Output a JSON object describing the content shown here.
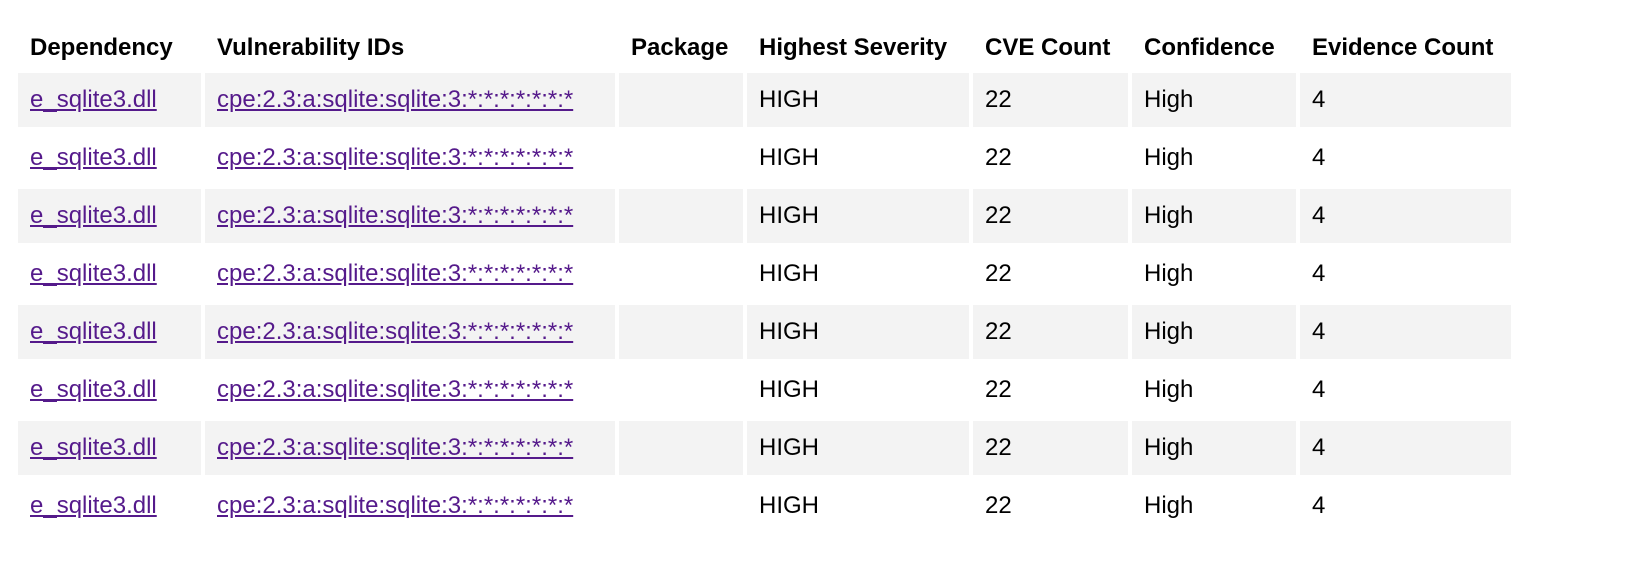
{
  "table": {
    "headers": {
      "dependency": "Dependency",
      "vulnerability_ids": "Vulnerability IDs",
      "package": "Package",
      "highest_severity": "Highest Severity",
      "cve_count": "CVE Count",
      "confidence": "Confidence",
      "evidence_count": "Evidence Count"
    },
    "rows": [
      {
        "dependency": "e_sqlite3.dll",
        "vulnerability_ids": "cpe:2.3:a:sqlite:sqlite:3:*:*:*:*:*:*:*",
        "package": "",
        "highest_severity": "HIGH",
        "cve_count": "22",
        "confidence": "High",
        "evidence_count": "4"
      },
      {
        "dependency": "e_sqlite3.dll",
        "vulnerability_ids": "cpe:2.3:a:sqlite:sqlite:3:*:*:*:*:*:*:*",
        "package": "",
        "highest_severity": "HIGH",
        "cve_count": "22",
        "confidence": "High",
        "evidence_count": "4"
      },
      {
        "dependency": "e_sqlite3.dll",
        "vulnerability_ids": "cpe:2.3:a:sqlite:sqlite:3:*:*:*:*:*:*:*",
        "package": "",
        "highest_severity": "HIGH",
        "cve_count": "22",
        "confidence": "High",
        "evidence_count": "4"
      },
      {
        "dependency": "e_sqlite3.dll",
        "vulnerability_ids": "cpe:2.3:a:sqlite:sqlite:3:*:*:*:*:*:*:*",
        "package": "",
        "highest_severity": "HIGH",
        "cve_count": "22",
        "confidence": "High",
        "evidence_count": "4"
      },
      {
        "dependency": "e_sqlite3.dll",
        "vulnerability_ids": "cpe:2.3:a:sqlite:sqlite:3:*:*:*:*:*:*:*",
        "package": "",
        "highest_severity": "HIGH",
        "cve_count": "22",
        "confidence": "High",
        "evidence_count": "4"
      },
      {
        "dependency": "e_sqlite3.dll",
        "vulnerability_ids": "cpe:2.3:a:sqlite:sqlite:3:*:*:*:*:*:*:*",
        "package": "",
        "highest_severity": "HIGH",
        "cve_count": "22",
        "confidence": "High",
        "evidence_count": "4"
      },
      {
        "dependency": "e_sqlite3.dll",
        "vulnerability_ids": "cpe:2.3:a:sqlite:sqlite:3:*:*:*:*:*:*:*",
        "package": "",
        "highest_severity": "HIGH",
        "cve_count": "22",
        "confidence": "High",
        "evidence_count": "4"
      },
      {
        "dependency": "e_sqlite3.dll",
        "vulnerability_ids": "cpe:2.3:a:sqlite:sqlite:3:*:*:*:*:*:*:*",
        "package": "",
        "highest_severity": "HIGH",
        "cve_count": "22",
        "confidence": "High",
        "evidence_count": "4"
      }
    ]
  },
  "colors": {
    "link": "#551a8b",
    "row_shade": "#f3f3f3"
  }
}
